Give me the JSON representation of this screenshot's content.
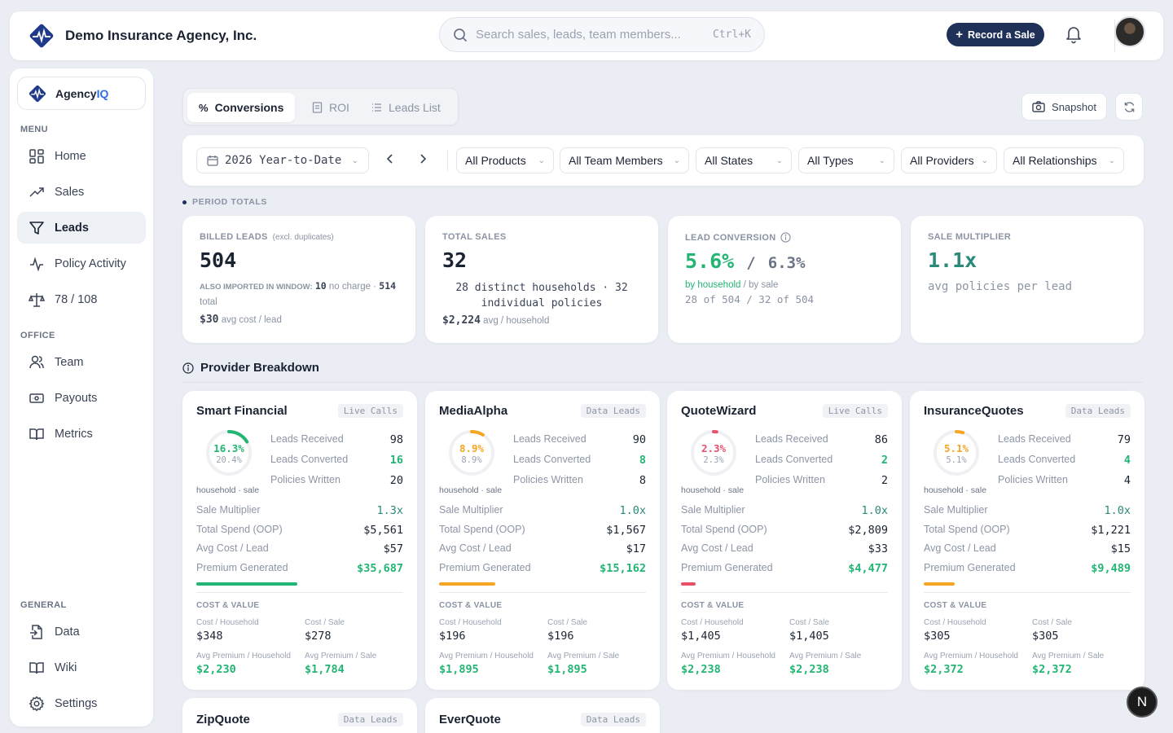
{
  "header": {
    "agency_name": "Demo Insurance Agency, Inc.",
    "search_placeholder": "Search sales, leads, team members...",
    "search_shortcut": "Ctrl+K",
    "record_button": "Record a Sale"
  },
  "sidebar": {
    "brand_prefix": "Agency",
    "brand_suffix": "IQ",
    "section_menu": "MENU",
    "section_office": "OFFICE",
    "section_general": "GENERAL",
    "items": [
      {
        "label": "Home",
        "icon": "grid-icon"
      },
      {
        "label": "Sales",
        "icon": "trending-up-icon"
      },
      {
        "label": "Leads",
        "icon": "funnel-icon",
        "active": true
      },
      {
        "label": "Policy Activity",
        "icon": "activity-icon"
      },
      {
        "label": "78 / 108",
        "icon": "scale-icon"
      },
      {
        "label": "Team",
        "icon": "users-icon"
      },
      {
        "label": "Payouts",
        "icon": "wallet-icon"
      },
      {
        "label": "Metrics",
        "icon": "book-icon"
      },
      {
        "label": "Data",
        "icon": "file-import-icon"
      },
      {
        "label": "Wiki",
        "icon": "book-open-icon"
      },
      {
        "label": "Settings",
        "icon": "gear-icon"
      }
    ]
  },
  "tabs": [
    {
      "label": "Conversions",
      "icon": "percent-icon",
      "active": true
    },
    {
      "label": "ROI",
      "icon": "receipt-icon"
    },
    {
      "label": "Leads List",
      "icon": "list-icon"
    }
  ],
  "actions": {
    "snapshot": "Snapshot"
  },
  "filters": {
    "period": "2026 Year-to-Date",
    "selects": [
      "All Products",
      "All Team Members",
      "All States",
      "All Types",
      "All Providers",
      "All Relationships"
    ]
  },
  "period_totals_label": "PERIOD TOTALS",
  "kpis": {
    "billed": {
      "label": "BILLED LEADS",
      "label_sub": "(excl. duplicates)",
      "value": "504",
      "also_label": "ALSO IMPORTED IN WINDOW:",
      "also_value": "10",
      "also_suffix": "no charge ·",
      "total_value": "514",
      "total_suffix": "total",
      "avg_value": "$30",
      "avg_suffix": "avg cost / lead"
    },
    "sales": {
      "label": "TOTAL SALES",
      "value": "32",
      "detail": "28 distinct households · 32 individual policies",
      "avg_value": "$2,224",
      "avg_suffix": "avg / household"
    },
    "conversion": {
      "label": "LEAD CONVERSION",
      "value_a": "5.6%",
      "sep": "/",
      "value_b": "6.3%",
      "by_household": "by household",
      "by_sale": "/ by sale",
      "detail": "28 of 504 / 32 of 504"
    },
    "multiplier": {
      "label": "SALE MULTIPLIER",
      "value": "1.1x",
      "detail": "avg policies per lead"
    }
  },
  "provider_section_title": "Provider Breakdown",
  "provider_labels": {
    "received": "Leads Received",
    "converted": "Leads Converted",
    "written": "Policies Written",
    "multiplier": "Sale Multiplier",
    "spend": "Total Spend (OOP)",
    "avg_cost": "Avg Cost / Lead",
    "premium": "Premium Generated",
    "hs": "household · sale",
    "cost_value": "COST & VALUE",
    "cost_household": "Cost / Household",
    "cost_sale": "Cost / Sale",
    "avg_prem_household": "Avg Premium / Household",
    "avg_prem_sale": "Avg Premium / Sale"
  },
  "providers": [
    {
      "name": "Smart Financial",
      "type": "Live Calls",
      "pct_household": "16.3%",
      "pct_sale": "20.4%",
      "ring_fraction": 0.163,
      "color": "#22b573",
      "received": "98",
      "converted": "16",
      "written": "20",
      "multiplier": "1.3x",
      "spend": "$5,561",
      "avg_cost": "$57",
      "premium": "$35,687",
      "bar_fraction": 0.49,
      "cost_household": "$348",
      "cost_sale": "$278",
      "avg_prem_household": "$2,230",
      "avg_prem_sale": "$1,784"
    },
    {
      "name": "MediaAlpha",
      "type": "Data Leads",
      "pct_household": "8.9%",
      "pct_sale": "8.9%",
      "ring_fraction": 0.089,
      "color": "#f5a623",
      "received": "90",
      "converted": "8",
      "written": "8",
      "multiplier": "1.0x",
      "spend": "$1,567",
      "avg_cost": "$17",
      "premium": "$15,162",
      "bar_fraction": 0.27,
      "cost_household": "$196",
      "cost_sale": "$196",
      "avg_prem_household": "$1,895",
      "avg_prem_sale": "$1,895"
    },
    {
      "name": "QuoteWizard",
      "type": "Live Calls",
      "pct_household": "2.3%",
      "pct_sale": "2.3%",
      "ring_fraction": 0.023,
      "color": "#e8506a",
      "received": "86",
      "converted": "2",
      "written": "2",
      "multiplier": "1.0x",
      "spend": "$2,809",
      "avg_cost": "$33",
      "premium": "$4,477",
      "bar_fraction": 0.07,
      "cost_household": "$1,405",
      "cost_sale": "$1,405",
      "avg_prem_household": "$2,238",
      "avg_prem_sale": "$2,238"
    },
    {
      "name": "InsuranceQuotes",
      "type": "Data Leads",
      "pct_household": "5.1%",
      "pct_sale": "5.1%",
      "ring_fraction": 0.051,
      "color": "#f5a623",
      "received": "79",
      "converted": "4",
      "written": "4",
      "multiplier": "1.0x",
      "spend": "$1,221",
      "avg_cost": "$15",
      "premium": "$9,489",
      "bar_fraction": 0.15,
      "cost_household": "$305",
      "cost_sale": "$305",
      "avg_prem_household": "$2,372",
      "avg_prem_sale": "$2,372"
    }
  ],
  "more_providers": [
    {
      "name": "ZipQuote",
      "type": "Data Leads"
    },
    {
      "name": "EverQuote",
      "type": "Data Leads"
    }
  ],
  "fab_label": "N"
}
